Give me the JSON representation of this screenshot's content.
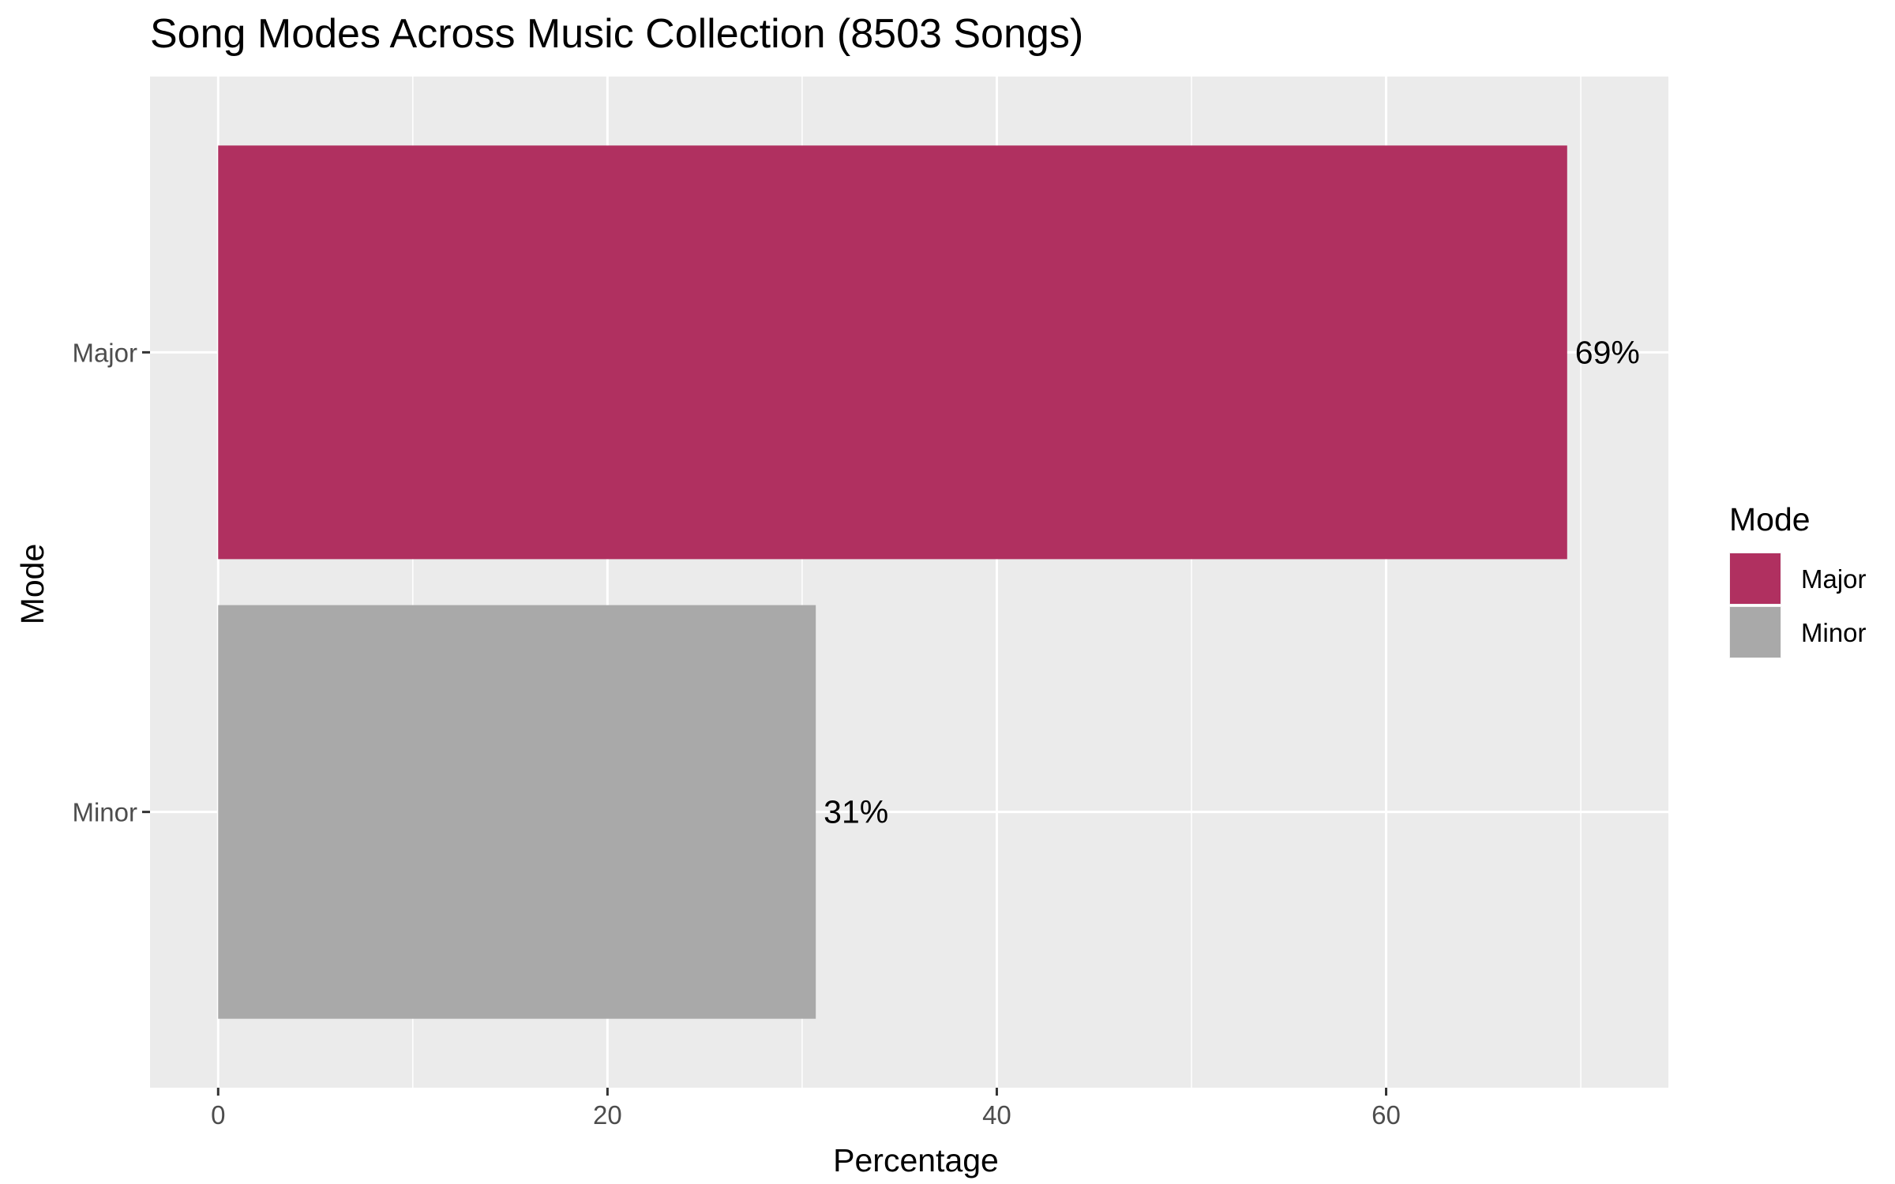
{
  "chart_data": {
    "type": "bar",
    "orientation": "horizontal",
    "title": "Song Modes Across Music Collection (8503 Songs)",
    "xlabel": "Percentage",
    "ylabel": "Mode",
    "categories": [
      "Major",
      "Minor"
    ],
    "values": [
      69.3,
      30.7
    ],
    "data_labels": [
      "69%",
      "31%"
    ],
    "colors": [
      "#b03060",
      "#a9a9a9"
    ],
    "xlim": [
      -3.5,
      74.5
    ],
    "xticks": [
      0,
      20,
      40,
      60
    ],
    "xtick_labels": [
      "0",
      "20",
      "40",
      "60"
    ],
    "grid": true,
    "legend": {
      "title": "Mode",
      "placement": "right",
      "entries": [
        {
          "label": "Major",
          "color": "#b03060"
        },
        {
          "label": "Minor",
          "color": "#a9a9a9"
        }
      ]
    }
  }
}
